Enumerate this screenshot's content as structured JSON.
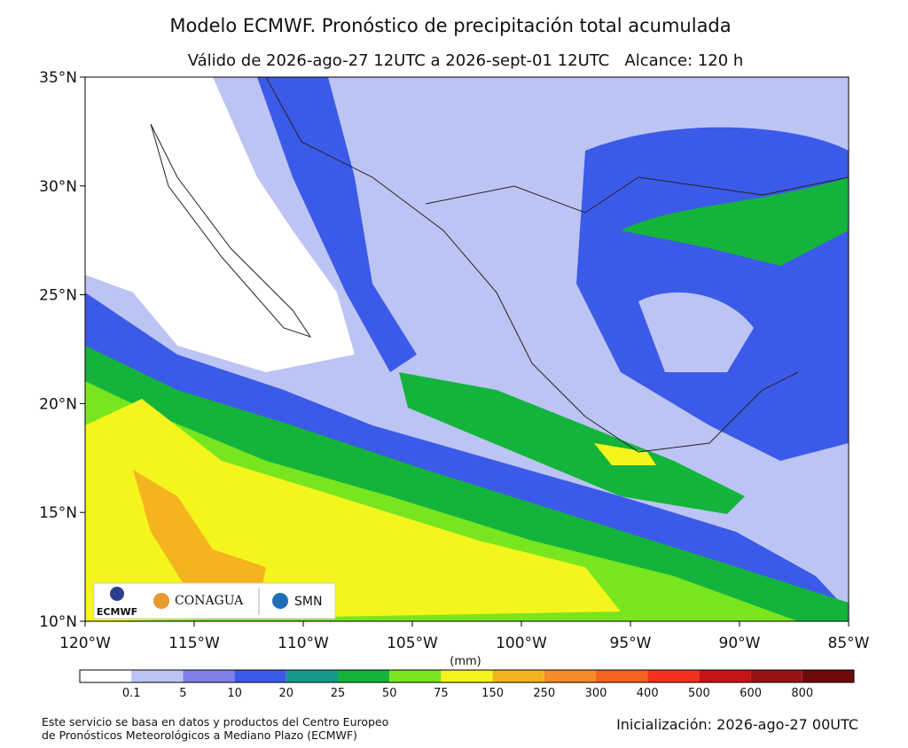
{
  "header": {
    "title": "Modelo ECMWF. Pronóstico de precipitación total acumulada",
    "subtitle": "Válido de 2026-ago-27 12UTC a 2026-sept-01 12UTC   Alcance: 120 h"
  },
  "map": {
    "lat_labels": [
      "35°N",
      "30°N",
      "25°N",
      "20°N",
      "15°N",
      "10°N"
    ],
    "lon_labels": [
      "120°W",
      "115°W",
      "110°W",
      "105°W",
      "100°W",
      "95°W",
      "90°W",
      "85°W"
    ]
  },
  "logos": {
    "ecmwf": "ECMWF",
    "conagua": "CONAGUA",
    "smn": "SMN"
  },
  "legend": {
    "unit": "(mm)",
    "ticks": [
      "0.1",
      "5",
      "10",
      "20",
      "25",
      "50",
      "75",
      "150",
      "250",
      "300",
      "400",
      "500",
      "600",
      "800"
    ],
    "colors": [
      "#ffffff",
      "#bcc4f4",
      "#8080ea",
      "#3c5ae8",
      "#189a8a",
      "#14b43c",
      "#78e61e",
      "#f5f51e",
      "#f5b41e",
      "#f58c28",
      "#f5641e",
      "#f0321e",
      "#c81414",
      "#961414",
      "#6e0a0a"
    ]
  },
  "footer": {
    "source_line1": "Este servicio se basa en datos y productos del Centro Europeo",
    "source_line2": "de Pronósticos Meteorológicos a Mediano Plazo (ECMWF)",
    "init": "Inicialización: 2026-ago-27 00UTC"
  }
}
